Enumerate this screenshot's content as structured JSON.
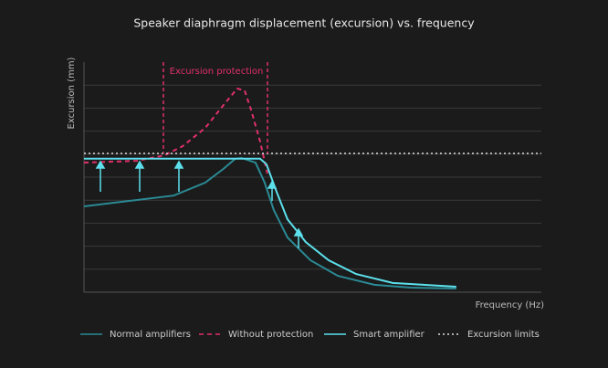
{
  "chart_data": {
    "type": "line",
    "title": "Speaker diaphragm displacement (excursion) vs. frequency",
    "x_label": "Frequency (Hz)",
    "y_label": "Excursion (mm)",
    "annotation": "Excursion protection",
    "xlim": [
      0,
      100
    ],
    "ylim": [
      0,
      10
    ],
    "yticks": [
      1,
      2,
      3,
      4,
      5,
      6,
      7,
      8,
      9
    ],
    "grid": true,
    "series": [
      {
        "name": "Normal amplifiers",
        "color": "#2a8a95",
        "style": "solid",
        "x": [
          0,
          19.6,
          26.5,
          30.5,
          33.1,
          34.5,
          37.5,
          39.5,
          41.5,
          44.5,
          49.5,
          55.5,
          63.5,
          71.5,
          81.4
        ],
        "values": [
          3.73,
          4.2,
          4.76,
          5.36,
          5.8,
          5.83,
          5.63,
          4.76,
          3.57,
          2.38,
          1.39,
          0.71,
          0.32,
          0.2,
          0.16
        ]
      },
      {
        "name": "Without protection",
        "color": "#e0306a",
        "style": "dashed",
        "x": [
          0,
          11.6,
          17.6,
          21.6,
          26.5,
          30.5,
          33.5,
          35.1,
          36.5,
          38.5,
          40.1
        ],
        "values": [
          5.63,
          5.71,
          5.95,
          6.35,
          7.14,
          8.13,
          8.85,
          8.77,
          7.94,
          6.55,
          5.16
        ]
      },
      {
        "name": "Smart amplifier",
        "color": "#5ce0ec",
        "style": "solid",
        "x": [
          0,
          38.5,
          39.9,
          42.1,
          44.5,
          48.5,
          53.5,
          59.5,
          67.5,
          81.4
        ],
        "values": [
          5.8,
          5.8,
          5.56,
          4.37,
          3.17,
          2.18,
          1.39,
          0.79,
          0.4,
          0.24
        ]
      },
      {
        "name": "Excursion limits",
        "color": "#dddddd",
        "style": "dotted",
        "x": [
          0,
          100
        ],
        "values": [
          6.03,
          6.03
        ]
      }
    ]
  }
}
